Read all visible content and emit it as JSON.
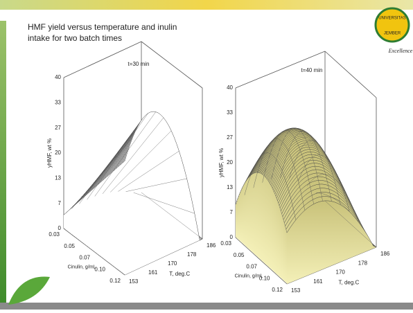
{
  "slide": {
    "title_lines": [
      "HMF yield versus temperature and inulin",
      "intake for two batch times"
    ],
    "logo": {
      "top": "UNIVERSITAS",
      "bottom": "JEMBER",
      "caption": "Excellence"
    },
    "charts": [
      {
        "title": "t=30 min",
        "z_label": "yHMF, wt %",
        "z_ticks": [
          "40",
          "33",
          "27",
          "20",
          "13",
          "7",
          "0"
        ],
        "x_label": "Cinulin, g/mL",
        "x_ticks": [
          "0.03",
          "0.05",
          "0.07",
          "0.10",
          "0.12"
        ],
        "y_label": "T, deg.C",
        "y_ticks": [
          "153",
          "161",
          "170",
          "178",
          "186"
        ]
      },
      {
        "title": "t=40 min",
        "z_label": "yHMF, wt %",
        "z_ticks": [
          "40",
          "33",
          "27",
          "20",
          "13",
          "7",
          "0"
        ],
        "x_label": "Cinulin, g/mL",
        "x_ticks": [
          "0.03",
          "0.05",
          "0.07",
          "0.10",
          "0.12"
        ],
        "y_label": "T, deg.C",
        "y_ticks": [
          "153",
          "161",
          "170",
          "178",
          "186"
        ]
      }
    ]
  }
}
